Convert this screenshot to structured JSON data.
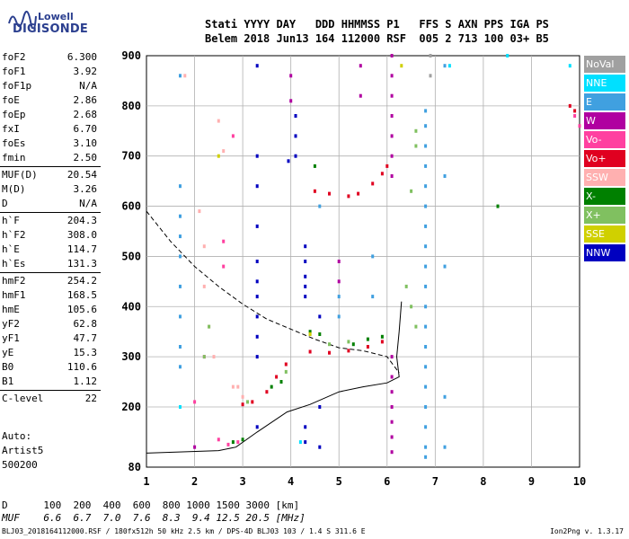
{
  "logo": {
    "line1": "Lowell",
    "line2": "DIGISONDE"
  },
  "header": {
    "row1": "Stati YYYY DAY   DDD HHMMSS P1   FFS S AXN PPS IGA PS",
    "row2": "Belem 2018 Jun13 164 112000 RSF  005 2 713 100 03+ B5"
  },
  "params": [
    {
      "label": "foF2",
      "value": "6.300"
    },
    {
      "label": "foF1",
      "value": "3.92"
    },
    {
      "label": "foF1p",
      "value": "N/A"
    },
    {
      "label": "foE",
      "value": "2.86"
    },
    {
      "label": "foEp",
      "value": "2.68"
    },
    {
      "label": "fxI",
      "value": "6.70"
    },
    {
      "label": "foEs",
      "value": "3.10"
    },
    {
      "label": "fmin",
      "value": "2.50"
    },
    {
      "label": "MUF(D)",
      "value": "20.54"
    },
    {
      "label": "M(D)",
      "value": "3.26"
    },
    {
      "label": "D",
      "value": "N/A"
    },
    {
      "label": "h`F",
      "value": "204.3"
    },
    {
      "label": "h`F2",
      "value": "308.0"
    },
    {
      "label": "h`E",
      "value": "114.7"
    },
    {
      "label": "h`Es",
      "value": "131.3"
    },
    {
      "label": "hmF2",
      "value": "254.2"
    },
    {
      "label": "hmF1",
      "value": "168.5"
    },
    {
      "label": "hmE",
      "value": "105.6"
    },
    {
      "label": "yF2",
      "value": "62.8"
    },
    {
      "label": "yF1",
      "value": "47.7"
    },
    {
      "label": "yE",
      "value": "15.3"
    },
    {
      "label": "B0",
      "value": "110.6"
    },
    {
      "label": "B1",
      "value": "1.12"
    },
    {
      "label": "C-level",
      "value": "22"
    }
  ],
  "artist": {
    "line1": "Auto:",
    "line2": "Artist5",
    "line3": "500200"
  },
  "legend": [
    {
      "label": "NoVal",
      "color": "#a0a0a0"
    },
    {
      "label": "NNE",
      "color": "#00e0ff"
    },
    {
      "label": "E",
      "color": "#40a0e0"
    },
    {
      "label": "W",
      "color": "#b000a0"
    },
    {
      "label": "Vo-",
      "color": "#ff40a0"
    },
    {
      "label": "Vo+",
      "color": "#e00020"
    },
    {
      "label": "SSW",
      "color": "#ffb0b0"
    },
    {
      "label": "X-",
      "color": "#008000"
    },
    {
      "label": "X+",
      "color": "#80c060"
    },
    {
      "label": "SSE",
      "color": "#d0d000"
    },
    {
      "label": "NNW",
      "color": "#0000c0"
    }
  ],
  "bottom": {
    "row1": "D      100  200  400  600  800 1000 1500 3000 [km]",
    "row2": "MUF    6.6  6.7  7.0  7.6  8.3  9.4 12.5 20.5 [MHz]"
  },
  "footer": {
    "left": "BLJ03_2018164112000.RSF / 180fx512h 50 kHz 2.5 km / DPS-4D BLJ03 103 / 1.4 S 311.6 E",
    "right": "Ion2Png v. 1.3.17"
  },
  "chart_data": {
    "type": "scatter",
    "xlim": [
      1,
      10
    ],
    "ylim": [
      80,
      900
    ],
    "x_ticks": [
      1,
      2,
      3,
      4,
      5,
      6,
      7,
      8,
      9,
      10
    ],
    "y_ticks": [
      80,
      200,
      300,
      400,
      500,
      600,
      700,
      800,
      900
    ],
    "grid": true,
    "series": [
      {
        "name": "W",
        "points": [
          [
            6.1,
            900
          ],
          [
            6.1,
            860
          ],
          [
            6.1,
            820
          ],
          [
            6.1,
            780
          ],
          [
            6.1,
            740
          ],
          [
            6.1,
            700
          ],
          [
            6.1,
            660
          ],
          [
            6.1,
            300
          ],
          [
            6.1,
            260
          ],
          [
            6.1,
            230
          ],
          [
            6.1,
            200
          ],
          [
            6.1,
            170
          ],
          [
            6.1,
            140
          ],
          [
            6.1,
            110
          ],
          [
            5.45,
            880
          ],
          [
            5.45,
            820
          ],
          [
            5.0,
            490
          ],
          [
            5.0,
            450
          ],
          [
            4.0,
            860
          ],
          [
            4.0,
            810
          ],
          [
            2.0,
            120
          ]
        ]
      },
      {
        "name": "NNW",
        "points": [
          [
            3.3,
            880
          ],
          [
            3.3,
            700
          ],
          [
            3.3,
            640
          ],
          [
            3.3,
            560
          ],
          [
            3.3,
            490
          ],
          [
            3.3,
            450
          ],
          [
            3.3,
            420
          ],
          [
            3.3,
            380
          ],
          [
            3.3,
            340
          ],
          [
            3.3,
            300
          ],
          [
            3.3,
            160
          ],
          [
            4.3,
            520
          ],
          [
            4.3,
            490
          ],
          [
            4.3,
            460
          ],
          [
            4.3,
            440
          ],
          [
            4.3,
            420
          ],
          [
            4.3,
            160
          ],
          [
            4.3,
            130
          ],
          [
            4.1,
            780
          ],
          [
            4.1,
            740
          ],
          [
            4.1,
            700
          ],
          [
            3.95,
            690
          ],
          [
            4.6,
            380
          ],
          [
            4.6,
            200
          ],
          [
            4.6,
            120
          ]
        ]
      },
      {
        "name": "E",
        "points": [
          [
            1.7,
            860
          ],
          [
            1.7,
            640
          ],
          [
            1.7,
            580
          ],
          [
            1.7,
            540
          ],
          [
            1.7,
            500
          ],
          [
            1.7,
            440
          ],
          [
            1.7,
            380
          ],
          [
            1.7,
            320
          ],
          [
            1.7,
            280
          ],
          [
            1.7,
            200
          ],
          [
            6.8,
            790
          ],
          [
            6.8,
            760
          ],
          [
            6.8,
            720
          ],
          [
            6.8,
            680
          ],
          [
            6.8,
            640
          ],
          [
            6.8,
            600
          ],
          [
            6.8,
            560
          ],
          [
            6.8,
            520
          ],
          [
            6.8,
            480
          ],
          [
            6.8,
            440
          ],
          [
            6.8,
            400
          ],
          [
            6.8,
            360
          ],
          [
            6.8,
            320
          ],
          [
            6.8,
            280
          ],
          [
            6.8,
            240
          ],
          [
            6.8,
            200
          ],
          [
            6.8,
            160
          ],
          [
            6.8,
            120
          ],
          [
            6.8,
            100
          ],
          [
            7.2,
            880
          ],
          [
            7.2,
            660
          ],
          [
            7.2,
            480
          ],
          [
            7.2,
            220
          ],
          [
            7.2,
            120
          ],
          [
            5.0,
            420
          ],
          [
            5.0,
            380
          ],
          [
            5.7,
            500
          ],
          [
            5.7,
            420
          ],
          [
            4.6,
            600
          ]
        ]
      },
      {
        "name": "NNE",
        "points": [
          [
            7.3,
            880
          ],
          [
            8.5,
            900
          ],
          [
            9.8,
            880
          ],
          [
            1.7,
            200
          ],
          [
            4.2,
            130
          ]
        ]
      },
      {
        "name": "Vo+",
        "points": [
          [
            5.2,
            620
          ],
          [
            5.4,
            625
          ],
          [
            5.7,
            645
          ],
          [
            5.9,
            665
          ],
          [
            6.0,
            680
          ],
          [
            9.8,
            800
          ],
          [
            9.9,
            790
          ],
          [
            3.0,
            205
          ],
          [
            3.2,
            210
          ],
          [
            3.5,
            230
          ],
          [
            3.7,
            260
          ],
          [
            3.9,
            285
          ],
          [
            4.4,
            310
          ],
          [
            4.8,
            308
          ],
          [
            5.2,
            312
          ],
          [
            5.6,
            320
          ],
          [
            5.9,
            330
          ],
          [
            4.5,
            630
          ],
          [
            4.8,
            625
          ]
        ]
      },
      {
        "name": "Vo-",
        "points": [
          [
            2.8,
            740
          ],
          [
            2.6,
            530
          ],
          [
            2.6,
            480
          ],
          [
            2.2,
            300
          ],
          [
            2.0,
            210
          ],
          [
            2.5,
            135
          ],
          [
            2.7,
            125
          ],
          [
            2.9,
            130
          ],
          [
            9.9,
            780
          ],
          [
            10.0,
            760
          ]
        ]
      },
      {
        "name": "SSW",
        "points": [
          [
            1.8,
            860
          ],
          [
            2.5,
            770
          ],
          [
            2.6,
            710
          ],
          [
            2.1,
            590
          ],
          [
            2.2,
            520
          ],
          [
            2.2,
            440
          ],
          [
            2.3,
            360
          ],
          [
            2.4,
            300
          ],
          [
            2.8,
            240
          ],
          [
            2.9,
            240
          ],
          [
            3.0,
            220
          ]
        ]
      },
      {
        "name": "X-",
        "points": [
          [
            4.5,
            680
          ],
          [
            4.4,
            350
          ],
          [
            4.6,
            345
          ],
          [
            5.3,
            325
          ],
          [
            5.6,
            335
          ],
          [
            5.9,
            340
          ],
          [
            3.6,
            240
          ],
          [
            3.8,
            250
          ],
          [
            8.3,
            600
          ],
          [
            2.8,
            130
          ],
          [
            3.0,
            135
          ]
        ]
      },
      {
        "name": "X+",
        "points": [
          [
            6.6,
            750
          ],
          [
            6.6,
            720
          ],
          [
            6.5,
            630
          ],
          [
            6.4,
            440
          ],
          [
            6.5,
            400
          ],
          [
            6.6,
            360
          ],
          [
            4.4,
            345
          ],
          [
            4.8,
            325
          ],
          [
            5.2,
            330
          ],
          [
            2.3,
            360
          ],
          [
            2.2,
            300
          ],
          [
            3.1,
            210
          ],
          [
            3.9,
            270
          ]
        ]
      },
      {
        "name": "SSE",
        "points": [
          [
            2.5,
            700
          ],
          [
            6.3,
            880
          ],
          [
            4.4,
            345
          ]
        ]
      },
      {
        "name": "NoVal",
        "points": [
          [
            6.9,
            900
          ],
          [
            6.9,
            860
          ]
        ]
      }
    ],
    "profile_line": {
      "points": [
        [
          1,
          108
        ],
        [
          2.5,
          113
        ],
        [
          2.86,
          120
        ],
        [
          3.3,
          150
        ],
        [
          3.92,
          190
        ],
        [
          4.4,
          205
        ],
        [
          5.0,
          230
        ],
        [
          5.5,
          240
        ],
        [
          6.0,
          248
        ],
        [
          6.25,
          260
        ],
        [
          6.2,
          300
        ],
        [
          6.25,
          350
        ],
        [
          6.3,
          410
        ]
      ]
    },
    "dashed_line": {
      "points": [
        [
          1,
          590
        ],
        [
          1.5,
          530
        ],
        [
          2.0,
          480
        ],
        [
          2.5,
          440
        ],
        [
          3.0,
          405
        ],
        [
          3.5,
          375
        ],
        [
          4.0,
          355
        ],
        [
          4.5,
          335
        ],
        [
          5.0,
          318
        ],
        [
          5.5,
          312
        ],
        [
          6.0,
          300
        ],
        [
          6.25,
          268
        ]
      ]
    }
  }
}
